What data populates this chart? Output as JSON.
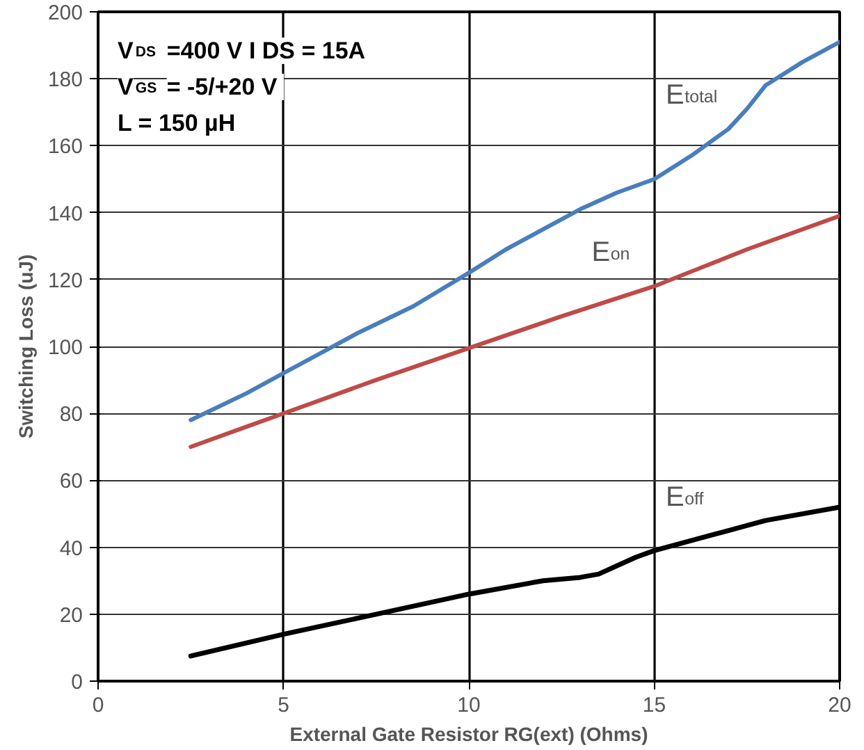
{
  "chart_data": {
    "type": "line",
    "xlabel": "External Gate Resistor RG(ext) (Ohms)",
    "ylabel": "Switching Loss (uJ)",
    "annotations": [
      "V$_{DS}$ =400 V  I DS = 15A",
      "V$_{GS}$ = -5/+20 V",
      "L =  150 µH"
    ],
    "series": [
      {
        "name": "E$_{total}$",
        "color": "#4a7ebb",
        "x": [
          2.5,
          4,
          5,
          6,
          7,
          8.5,
          10,
          11,
          12,
          13,
          14,
          15,
          16,
          17,
          17.5,
          18,
          19,
          20
        ],
        "values": [
          78,
          86,
          92,
          98,
          104,
          112,
          122,
          129,
          135,
          141,
          146,
          150,
          157,
          165,
          171,
          178,
          185,
          191
        ]
      },
      {
        "name": "E$_{on}$",
        "color": "#be4b48",
        "x": [
          2.5,
          4,
          5,
          7.5,
          10,
          12.5,
          15,
          17.5,
          20
        ],
        "values": [
          70,
          76,
          80,
          90,
          99.5,
          109,
          118,
          129,
          139
        ]
      },
      {
        "name": "E$_{off}$",
        "color": "#000000",
        "x": [
          2.5,
          5,
          7.5,
          10,
          12,
          13,
          13.5,
          14.5,
          15,
          17,
          18,
          20
        ],
        "values": [
          7.5,
          14,
          20,
          26,
          30,
          31,
          32,
          37,
          39,
          45,
          48,
          52
        ]
      }
    ],
    "xlim": [
      0,
      20
    ],
    "xticks": [
      0,
      5,
      10,
      15,
      20
    ],
    "ylim": [
      0,
      200
    ],
    "yticks": [
      0,
      20,
      40,
      60,
      80,
      100,
      120,
      140,
      160,
      180,
      200
    ],
    "grid": true,
    "line_style": "solid"
  }
}
